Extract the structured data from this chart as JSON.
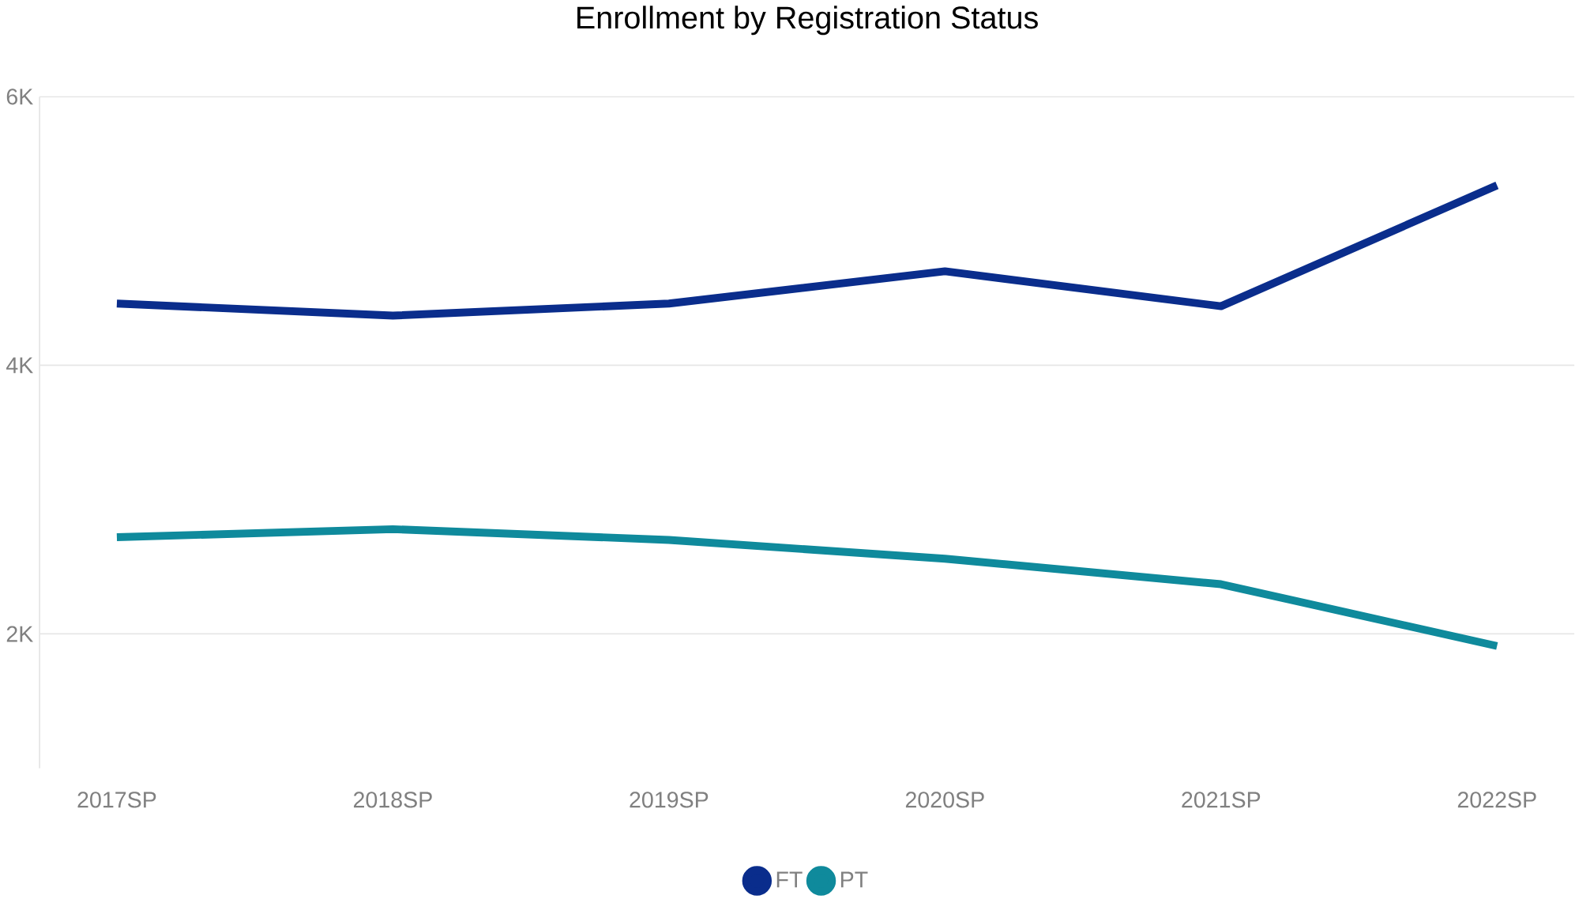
{
  "chart_data": {
    "type": "line",
    "title": "Enrollment by Registration Status",
    "categories": [
      "2017SP",
      "2018SP",
      "2019SP",
      "2020SP",
      "2021SP",
      "2022SP"
    ],
    "series": [
      {
        "name": "FT",
        "color": "#0a2d8c",
        "values": [
          4460,
          4370,
          4460,
          4700,
          4440,
          5340
        ]
      },
      {
        "name": "PT",
        "color": "#0f8a9c",
        "values": [
          2720,
          2780,
          2700,
          2560,
          2370,
          1910
        ]
      }
    ],
    "yticks": [
      {
        "value": 2000,
        "label": "2K"
      },
      {
        "value": 4000,
        "label": "4K"
      },
      {
        "value": 6000,
        "label": "6K"
      }
    ],
    "ylim": [
      1000,
      6000
    ],
    "grid": "y",
    "legend": "bottom",
    "line_style": "solid"
  }
}
